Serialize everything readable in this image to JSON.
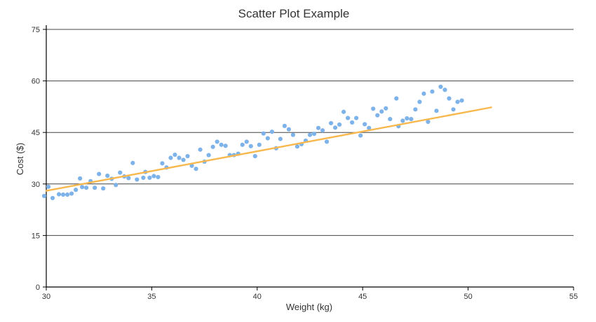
{
  "chart_data": {
    "type": "scatter",
    "title": "Scatter Plot Example",
    "xlabel": "Weight (kg)",
    "ylabel": "Cost ($)",
    "xlim": [
      30,
      55
    ],
    "ylim": [
      0,
      75
    ],
    "xticks": [
      30,
      35,
      40,
      45,
      50,
      55
    ],
    "yticks": [
      0,
      15,
      30,
      45,
      60,
      75
    ],
    "grid": "horizontal",
    "legend": "none",
    "colors": {
      "points": "#7eb3ea",
      "trend": "#f8b84e",
      "grid": "#444444",
      "axis": "#000000",
      "text": "#333333"
    },
    "series": [
      {
        "points": [
          [
            29.9,
            26.5
          ],
          [
            30.1,
            29.2
          ],
          [
            30.3,
            25.9
          ],
          [
            30.6,
            27.0
          ],
          [
            30.8,
            26.9
          ],
          [
            31.0,
            26.9
          ],
          [
            31.2,
            27.2
          ],
          [
            31.4,
            28.3
          ],
          [
            31.6,
            31.6
          ],
          [
            31.7,
            29.1
          ],
          [
            31.9,
            28.9
          ],
          [
            32.1,
            30.8
          ],
          [
            32.3,
            28.9
          ],
          [
            32.5,
            32.9
          ],
          [
            32.7,
            28.7
          ],
          [
            32.9,
            32.4
          ],
          [
            33.1,
            31.5
          ],
          [
            33.3,
            29.7
          ],
          [
            33.5,
            33.3
          ],
          [
            33.7,
            32.2
          ],
          [
            33.9,
            31.7
          ],
          [
            34.1,
            36.1
          ],
          [
            34.3,
            31.3
          ],
          [
            34.6,
            31.8
          ],
          [
            34.7,
            33.5
          ],
          [
            34.9,
            31.8
          ],
          [
            35.1,
            32.3
          ],
          [
            35.3,
            32.0
          ],
          [
            35.5,
            36.0
          ],
          [
            35.7,
            34.8
          ],
          [
            35.9,
            37.6
          ],
          [
            36.1,
            38.5
          ],
          [
            36.3,
            37.6
          ],
          [
            36.5,
            37.0
          ],
          [
            36.7,
            38.1
          ],
          [
            36.9,
            35.3
          ],
          [
            37.1,
            34.4
          ],
          [
            37.3,
            40.0
          ],
          [
            37.5,
            36.5
          ],
          [
            37.7,
            38.4
          ],
          [
            37.9,
            40.8
          ],
          [
            38.1,
            42.3
          ],
          [
            38.3,
            41.4
          ],
          [
            38.5,
            41.1
          ],
          [
            38.7,
            38.4
          ],
          [
            38.9,
            38.4
          ],
          [
            39.1,
            38.8
          ],
          [
            39.3,
            41.4
          ],
          [
            39.5,
            42.3
          ],
          [
            39.7,
            41.0
          ],
          [
            39.9,
            38.1
          ],
          [
            40.1,
            41.4
          ],
          [
            40.3,
            44.7
          ],
          [
            40.5,
            43.3
          ],
          [
            40.7,
            45.2
          ],
          [
            40.9,
            40.4
          ],
          [
            41.1,
            43.1
          ],
          [
            41.3,
            46.9
          ],
          [
            41.5,
            45.9
          ],
          [
            41.7,
            44.3
          ],
          [
            41.9,
            40.9
          ],
          [
            42.1,
            41.6
          ],
          [
            42.3,
            42.6
          ],
          [
            42.5,
            44.3
          ],
          [
            42.7,
            44.6
          ],
          [
            42.9,
            46.3
          ],
          [
            43.1,
            45.6
          ],
          [
            43.3,
            42.3
          ],
          [
            43.5,
            47.7
          ],
          [
            43.7,
            46.4
          ],
          [
            43.9,
            47.3
          ],
          [
            44.1,
            51.0
          ],
          [
            44.3,
            49.2
          ],
          [
            44.5,
            47.9
          ],
          [
            44.7,
            49.2
          ],
          [
            44.9,
            44.1
          ],
          [
            45.1,
            47.4
          ],
          [
            45.3,
            46.3
          ],
          [
            45.5,
            51.9
          ],
          [
            45.7,
            50.0
          ],
          [
            45.9,
            51.1
          ],
          [
            46.1,
            52.0
          ],
          [
            46.3,
            48.9
          ],
          [
            46.6,
            54.9
          ],
          [
            46.7,
            46.8
          ],
          [
            46.9,
            48.4
          ],
          [
            47.1,
            49.1
          ],
          [
            47.3,
            48.9
          ],
          [
            47.5,
            51.7
          ],
          [
            47.7,
            53.9
          ],
          [
            47.9,
            56.3
          ],
          [
            48.1,
            48.1
          ],
          [
            48.3,
            56.9
          ],
          [
            48.5,
            51.3
          ],
          [
            48.7,
            58.3
          ],
          [
            48.9,
            57.4
          ],
          [
            49.1,
            54.9
          ],
          [
            49.3,
            51.7
          ],
          [
            49.5,
            53.9
          ],
          [
            49.7,
            54.3
          ]
        ]
      }
    ],
    "trendline": {
      "x": [
        30,
        51.1
      ],
      "y": [
        28.0,
        52.3
      ]
    }
  }
}
